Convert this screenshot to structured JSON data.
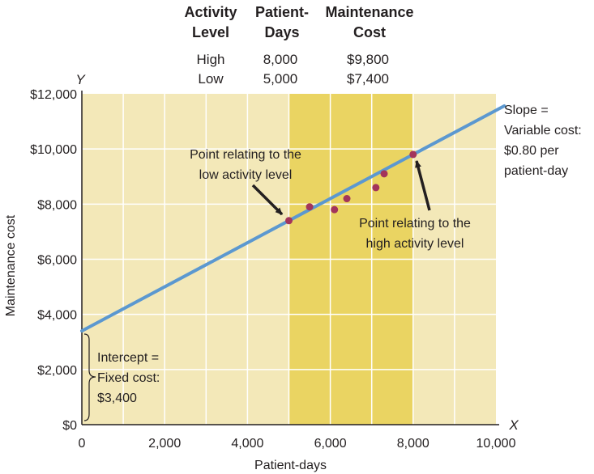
{
  "table": {
    "headers": [
      [
        "Activity",
        "Level"
      ],
      [
        "Patient-",
        "Days"
      ],
      [
        "Maintenance",
        "Cost"
      ]
    ],
    "rows": [
      [
        "High",
        "8,000",
        "$9,800"
      ],
      [
        "Low",
        "5,000",
        "$7,400"
      ]
    ]
  },
  "annotations": {
    "slope": [
      "Slope =",
      "Variable cost:",
      "$0.80 per",
      "patient-day"
    ],
    "low_point": [
      "Point relating to the",
      "low activity level"
    ],
    "high_point": [
      "Point relating to the",
      "high activity level"
    ],
    "intercept": [
      "Intercept =",
      "Fixed cost:",
      "$3,400"
    ]
  },
  "chart_data": {
    "type": "scatter",
    "title": "",
    "xlabel": "Patient-days",
    "ylabel": "Maintenance cost",
    "x_axis_letter": "X",
    "y_axis_letter": "Y",
    "xlim": [
      0,
      10000
    ],
    "ylim": [
      0,
      12000
    ],
    "x_ticks": [
      0,
      2000,
      4000,
      6000,
      8000,
      10000
    ],
    "x_tick_labels": [
      "0",
      "2,000",
      "4,000",
      "6,000",
      "8,000",
      "10,000"
    ],
    "y_ticks": [
      0,
      2000,
      4000,
      6000,
      8000,
      10000,
      12000
    ],
    "y_tick_labels": [
      "$0",
      "$2,000",
      "$4,000",
      "$6,000",
      "$8,000",
      "$10,000",
      "$12,000"
    ],
    "grid": true,
    "relevant_range": [
      5000,
      8000
    ],
    "points": [
      {
        "x": 5000,
        "y": 7400
      },
      {
        "x": 5500,
        "y": 7900
      },
      {
        "x": 6100,
        "y": 7800
      },
      {
        "x": 6400,
        "y": 8200
      },
      {
        "x": 7100,
        "y": 8600
      },
      {
        "x": 7300,
        "y": 9100
      },
      {
        "x": 8000,
        "y": 9800
      }
    ],
    "line": {
      "intercept": 3400,
      "slope": 0.8,
      "x_end": 10200
    },
    "colors": {
      "plot_bg": "#f3e8b8",
      "range_bg": "#ead462",
      "grid": "#ffffff",
      "line": "#5b98d0",
      "points": "#a3345b",
      "arrow": "#231f20"
    }
  }
}
